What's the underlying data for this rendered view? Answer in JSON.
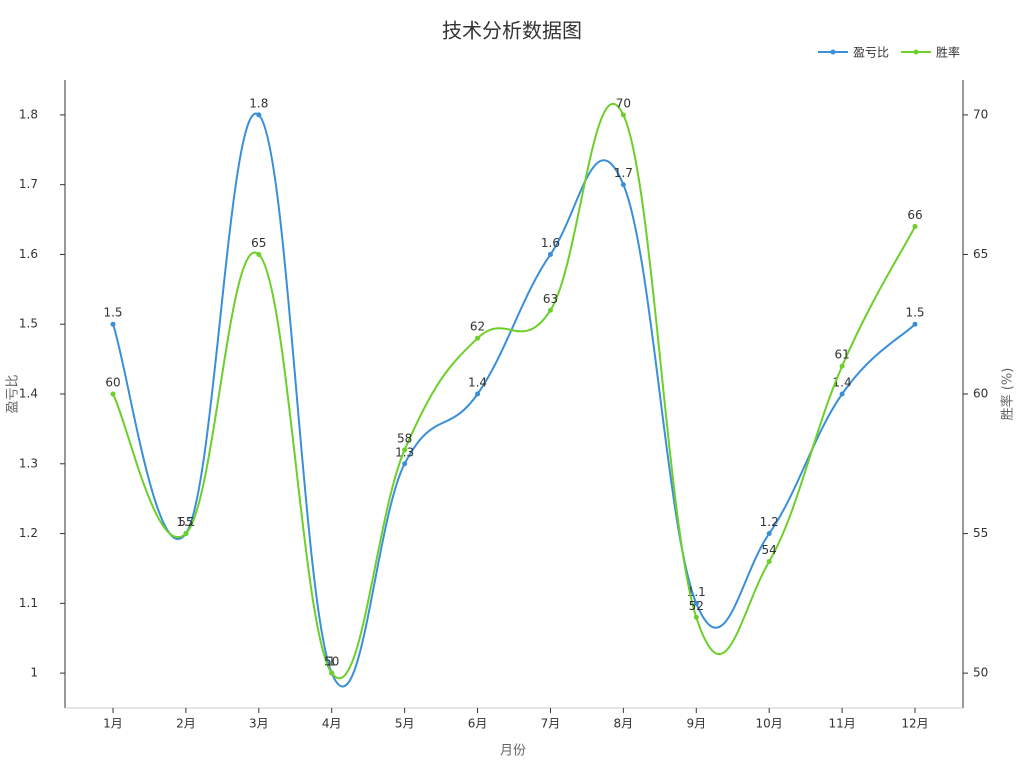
{
  "chart_data": {
    "type": "line",
    "title": "技术分析数据图",
    "x_label": "月份",
    "y_label": "盈亏比",
    "y2_label": "胜率 (%)",
    "categories": [
      "1月",
      "2月",
      "3月",
      "4月",
      "5月",
      "6月",
      "7月",
      "8月",
      "9月",
      "10月",
      "11月",
      "12月"
    ],
    "series": [
      {
        "name": "盈亏比",
        "color": "#3a8fd9",
        "values": [
          1.5,
          1.2,
          1.8,
          1,
          1.3,
          1.4,
          1.6,
          1.7,
          1.1,
          1.2,
          1.4,
          1.5
        ]
      },
      {
        "name": "胜率",
        "color": "#6ccf2a",
        "axis": "y2",
        "values": [
          60,
          55,
          65,
          50,
          58,
          62,
          63,
          70,
          52,
          54,
          61,
          66
        ]
      }
    ],
    "ylim": [
      0.95,
      1.85
    ],
    "yticks": [
      1,
      1.1,
      1.2,
      1.3,
      1.4,
      1.5,
      1.6,
      1.7,
      1.8
    ],
    "y2lim": [
      48.75,
      71.25
    ],
    "y2ticks": [
      50,
      55,
      60,
      65,
      70
    ],
    "smooth": true,
    "legend": "top-right"
  }
}
